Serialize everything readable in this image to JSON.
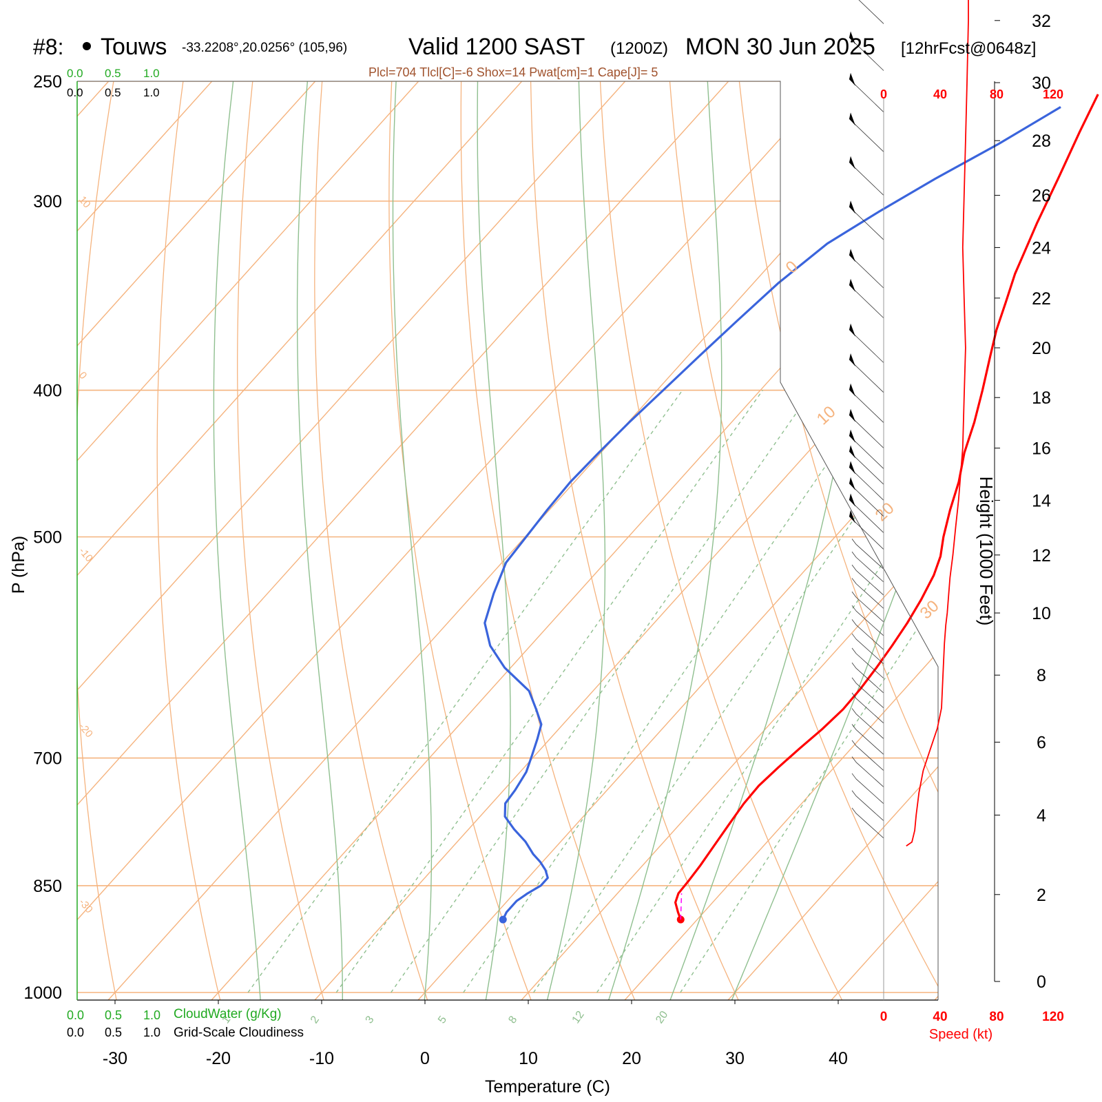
{
  "header": {
    "station_num": "#8:",
    "station_name": "Touws",
    "station_coords": "-33.2208°,20.0256° (105,96)",
    "valid_main": "Valid 1200 SAST",
    "valid_z": "(1200Z)",
    "valid_date": "MON 30 Jun 2025",
    "forecast": "[12hrFcst@0648z]",
    "indices": "Plcl=704 Tlcl[C]=-6 Shox=14 Pwat[cm]=1 Cape[J]= 5"
  },
  "cloud_scale": {
    "green_ticks": [
      "0.0",
      "0.5",
      "1.0"
    ],
    "black_ticks": [
      "0.0",
      "0.5",
      "1.0"
    ],
    "cloudwater_label": "CloudWater (g/Kg)",
    "cloudiness_label": "Grid-Scale Cloudiness"
  },
  "chart_data": {
    "type": "line",
    "title": "",
    "xlabel": "Temperature (C)",
    "ylabel": "P (hPa)",
    "y2label": "Height (1000 Feet)",
    "x_ticks": [
      -30,
      -20,
      -10,
      0,
      10,
      20,
      30,
      40
    ],
    "p_ticks": [
      250,
      300,
      400,
      500,
      700,
      850,
      1000
    ],
    "height_ticks": [
      0,
      2,
      4,
      6,
      8,
      10,
      12,
      14,
      16,
      18,
      20,
      22,
      24,
      26,
      28,
      30,
      32
    ],
    "isotherm_labels": [
      "10",
      "0",
      "-10",
      "-20",
      "-30"
    ],
    "isotherm_labels_right": [
      "0",
      "10",
      "20",
      "30"
    ],
    "mixing_ratio_labels": [
      "1",
      "2",
      "3",
      "5",
      "8",
      "12",
      "20"
    ],
    "series": [
      {
        "name": "Temperature",
        "color": "#ff0000",
        "points": [
          [
            18.4,
            895
          ],
          [
            17.5,
            885
          ],
          [
            16.4,
            872
          ],
          [
            15.9,
            860
          ],
          [
            15.8,
            845
          ],
          [
            15.6,
            825
          ],
          [
            15.2,
            800
          ],
          [
            14.8,
            775
          ],
          [
            14.4,
            750
          ],
          [
            14.3,
            730
          ],
          [
            14.6,
            710
          ],
          [
            15.0,
            690
          ],
          [
            15.5,
            670
          ],
          [
            15.8,
            650
          ],
          [
            15.7,
            630
          ],
          [
            15.4,
            610
          ],
          [
            15.0,
            590
          ],
          [
            14.5,
            570
          ],
          [
            13.8,
            550
          ],
          [
            12.9,
            530
          ],
          [
            11.9,
            515
          ],
          [
            10.5,
            500
          ],
          [
            8.8,
            480
          ],
          [
            7.2,
            460
          ],
          [
            5.2,
            440
          ],
          [
            3.5,
            420
          ],
          [
            1.5,
            400
          ],
          [
            -0.7,
            380
          ],
          [
            -2.4,
            365
          ],
          [
            -3.9,
            350
          ],
          [
            -5.5,
            335
          ],
          [
            -6.4,
            325
          ],
          [
            -7.8,
            310
          ],
          [
            -9.6,
            290
          ],
          [
            -11.6,
            270
          ],
          [
            -13.1,
            255
          ]
        ]
      },
      {
        "name": "Dewpoint",
        "color": "#3a64dc",
        "points": [
          [
            1.2,
            895
          ],
          [
            0.9,
            885
          ],
          [
            0.9,
            870
          ],
          [
            1.3,
            860
          ],
          [
            1.9,
            850
          ],
          [
            1.9,
            840
          ],
          [
            1.0,
            830
          ],
          [
            -0.2,
            820
          ],
          [
            -1.6,
            810
          ],
          [
            -3.4,
            795
          ],
          [
            -5.6,
            780
          ],
          [
            -7.6,
            765
          ],
          [
            -8.7,
            750
          ],
          [
            -8.9,
            735
          ],
          [
            -9.4,
            715
          ],
          [
            -10.3,
            697
          ],
          [
            -11.2,
            680
          ],
          [
            -12.1,
            665
          ],
          [
            -13.9,
            650
          ],
          [
            -16.2,
            632
          ],
          [
            -20.6,
            610
          ],
          [
            -23.9,
            590
          ],
          [
            -26.4,
            570
          ],
          [
            -28.1,
            545
          ],
          [
            -29.6,
            520
          ],
          [
            -29.9,
            500
          ],
          [
            -30.2,
            480
          ],
          [
            -30.4,
            460
          ],
          [
            -30.2,
            440
          ],
          [
            -29.9,
            420
          ],
          [
            -29.4,
            400
          ],
          [
            -28.9,
            380
          ],
          [
            -28.3,
            360
          ],
          [
            -27.6,
            340
          ],
          [
            -26.3,
            320
          ],
          [
            -24.1,
            305
          ],
          [
            -21.5,
            290
          ],
          [
            -18.4,
            275
          ],
          [
            -15.6,
            260
          ]
        ]
      }
    ],
    "wind_speed": {
      "label": "Speed (kt)",
      "ticks": [
        0,
        40,
        80,
        120
      ],
      "heights_kft": [
        3.2,
        3.3,
        3.6,
        4.0,
        4.6,
        5.2,
        5.8,
        6.4,
        7.0,
        8.0,
        9.0,
        9.6,
        10.0,
        10.6,
        11.2,
        12.0,
        13.0,
        14.0,
        16.0,
        18.0,
        20.0,
        22.0,
        24.0,
        26.0,
        28.0,
        30.0,
        32.0,
        33.0
      ],
      "speeds_kt": [
        16,
        20,
        22,
        23,
        25,
        28,
        33,
        38,
        41,
        42,
        43,
        44,
        45,
        46,
        47,
        49,
        51,
        53,
        56,
        57,
        58,
        57,
        56,
        57,
        58,
        59,
        60,
        60
      ]
    }
  }
}
